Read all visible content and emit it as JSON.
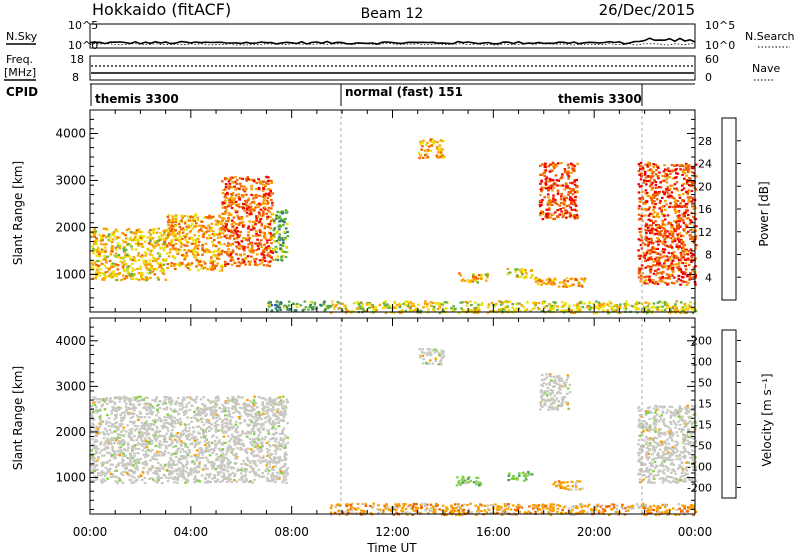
{
  "header": {
    "station": "Hokkaido (fitACF)",
    "beam": "Beam 12",
    "date": "26/Dec/2015"
  },
  "noise_panel": {
    "left_label": "N.Sky",
    "right_label": "N.Search",
    "ticks": [
      "10^5",
      "10^0"
    ]
  },
  "freq_panel": {
    "left_label_1": "Freq.",
    "left_label_2": "[MHz]",
    "right_label": "Nave",
    "left_ticks": [
      "18",
      "8"
    ],
    "right_ticks": [
      "60",
      "0"
    ]
  },
  "cpid_panel": {
    "label": "CPID",
    "segments": [
      "themis 3300",
      "normal (fast) 151",
      "themis 3300"
    ]
  },
  "x_axis": {
    "label": "Time UT",
    "ticks": [
      "00:00",
      "04:00",
      "08:00",
      "12:00",
      "16:00",
      "20:00",
      "00:00"
    ]
  },
  "colors": {
    "velocity_ground": "#c8c8c0",
    "dashed_marker": "#999999"
  },
  "chart_data": [
    {
      "type": "heatmap",
      "name": "power",
      "ylabel": "Slant Range [km]",
      "yticks": [
        "1000",
        "2000",
        "3000",
        "4000"
      ],
      "ylim": [
        200,
        4500
      ],
      "xlim_hours": [
        0,
        24
      ],
      "colorbar": {
        "label": "Power [dB]",
        "ticks": [
          "4",
          "8",
          "12",
          "16",
          "20",
          "24",
          "28"
        ],
        "colors": [
          "#1010ff",
          "#2050b0",
          "#308060",
          "#60b040",
          "#e8e000",
          "#f8a000",
          "#f06000",
          "#f00000"
        ]
      },
      "regions": [
        {
          "t0": 0.0,
          "t1": 3.0,
          "r0": 900,
          "r1": 2000,
          "level": 20
        },
        {
          "t0": 3.0,
          "t1": 5.2,
          "r0": 1100,
          "r1": 2300,
          "level": 22
        },
        {
          "t0": 5.2,
          "t1": 7.2,
          "r0": 1200,
          "r1": 3100,
          "level": 26
        },
        {
          "t0": 7.2,
          "t1": 7.8,
          "r0": 1300,
          "r1": 2400,
          "level": 14
        },
        {
          "t0": 13.0,
          "t1": 14.0,
          "r0": 3500,
          "r1": 3900,
          "level": 22
        },
        {
          "t0": 14.6,
          "t1": 15.8,
          "r0": 850,
          "r1": 1050,
          "level": 20
        },
        {
          "t0": 16.5,
          "t1": 17.5,
          "r0": 950,
          "r1": 1150,
          "level": 20
        },
        {
          "t0": 17.6,
          "t1": 18.4,
          "r0": 800,
          "r1": 950,
          "level": 22
        },
        {
          "t0": 17.8,
          "t1": 19.3,
          "r0": 2200,
          "r1": 3400,
          "level": 27
        },
        {
          "t0": 18.5,
          "t1": 19.6,
          "r0": 750,
          "r1": 950,
          "level": 22
        },
        {
          "t0": 21.7,
          "t1": 24.0,
          "r0": 800,
          "r1": 3400,
          "level": 27
        },
        {
          "t0": 7.0,
          "t1": 9.5,
          "r0": 250,
          "r1": 450,
          "level": 12
        },
        {
          "t0": 9.5,
          "t1": 24.0,
          "r0": 200,
          "r1": 450,
          "level": 18
        }
      ]
    },
    {
      "type": "heatmap",
      "name": "velocity",
      "ylabel": "Slant Range [km]",
      "yticks": [
        "1000",
        "2000",
        "3000",
        "4000"
      ],
      "ylim": [
        200,
        4500
      ],
      "xlim_hours": [
        0,
        24
      ],
      "colorbar": {
        "label": "Velocity [m s⁻¹]",
        "ticks": [
          "200",
          "100",
          "50",
          "15",
          "-15",
          "-50",
          "-100",
          "-200"
        ],
        "colors": [
          "#1030c0",
          "#2070a0",
          "#40a060",
          "#80d040",
          "#c8c8c0",
          "#f8a000",
          "#f06000",
          "#f00000"
        ]
      },
      "regions": [
        {
          "t0": 0.0,
          "t1": 7.8,
          "r0": 900,
          "r1": 2800,
          "level": 0
        },
        {
          "t0": 13.0,
          "t1": 14.0,
          "r0": 3500,
          "r1": 3850,
          "level": 0
        },
        {
          "t0": 14.5,
          "t1": 15.5,
          "r0": 850,
          "r1": 1050,
          "level": 30
        },
        {
          "t0": 16.5,
          "t1": 17.5,
          "r0": 950,
          "r1": 1150,
          "level": 40
        },
        {
          "t0": 17.8,
          "t1": 19.0,
          "r0": 2500,
          "r1": 3300,
          "level": 0
        },
        {
          "t0": 18.3,
          "t1": 19.5,
          "r0": 750,
          "r1": 950,
          "level": -80
        },
        {
          "t0": 21.7,
          "t1": 24.0,
          "r0": 900,
          "r1": 2600,
          "level": 0
        },
        {
          "t0": 9.5,
          "t1": 24.0,
          "r0": 200,
          "r1": 450,
          "level": -40
        }
      ]
    }
  ]
}
